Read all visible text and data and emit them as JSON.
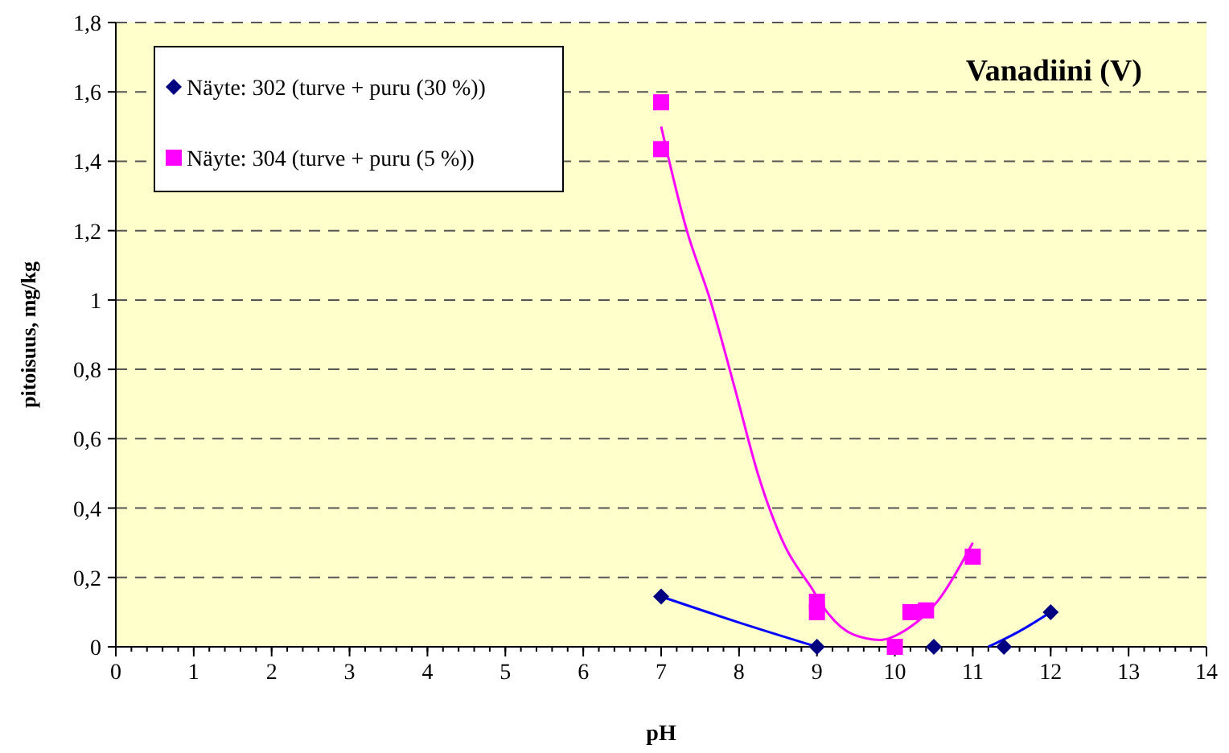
{
  "chart_data": {
    "type": "scatter",
    "title": "Vanadiini (V)",
    "xlabel": "pH",
    "ylabel": "pitoisuus, mg/kg",
    "xlim": [
      0,
      14
    ],
    "xticks": [
      0,
      1,
      2,
      3,
      4,
      5,
      6,
      7,
      8,
      9,
      10,
      11,
      12,
      13,
      14
    ],
    "ylim": [
      0,
      1.8
    ],
    "yticks": [
      0,
      {
        "value": 0.2,
        "label": "0,2"
      },
      {
        "value": 0.4,
        "label": "0,4"
      },
      {
        "value": 0.6,
        "label": "0,6"
      },
      {
        "value": 0.8,
        "label": "0,8"
      },
      1,
      {
        "value": 1.2,
        "label": "1,2"
      },
      {
        "value": 1.4,
        "label": "1,4"
      },
      {
        "value": 1.6,
        "label": "1,6"
      },
      {
        "value": 1.8,
        "label": "1,8"
      }
    ],
    "grid": "y",
    "legend": "top left",
    "series": [
      {
        "type": "line",
        "color": "#0000ff",
        "marker": "none",
        "x": [
          7,
          8,
          9,
          10,
          11.2,
          11.6,
          12
        ],
        "values": [
          0.145,
          0.07,
          0,
          null,
          0,
          0.045,
          0.1
        ]
      },
      {
        "type": "line",
        "color": "#ff00ff",
        "marker": "none",
        "x": [
          7,
          7.33,
          7.63,
          7.94,
          8.24,
          8.59,
          8.93,
          9.13,
          9.47,
          9.81,
          10.15,
          10.56,
          11
        ],
        "values": [
          1.5,
          1.2,
          1.0,
          0.75,
          0.5,
          0.29,
          0.17,
          0.1,
          0.035,
          0.02,
          0.05,
          0.135,
          0.3
        ]
      },
      {
        "name": "Näyte: 302 (turve + puru (30 %))",
        "color": "#000080",
        "marker": "diamond",
        "x": [
          7,
          9,
          10.5,
          11.4,
          12
        ],
        "values": [
          0.145,
          0,
          0,
          0,
          0.1
        ]
      },
      {
        "name": "Näyte: 304 (turve + puru (5 %))",
        "color": "#ff00ff",
        "marker": "square",
        "x": [
          7,
          7,
          9,
          9,
          10,
          10.2,
          10.4,
          11
        ],
        "values": [
          1.57,
          1.435,
          0.13,
          0.1,
          0,
          0.1,
          0.105,
          0.26
        ]
      }
    ]
  }
}
